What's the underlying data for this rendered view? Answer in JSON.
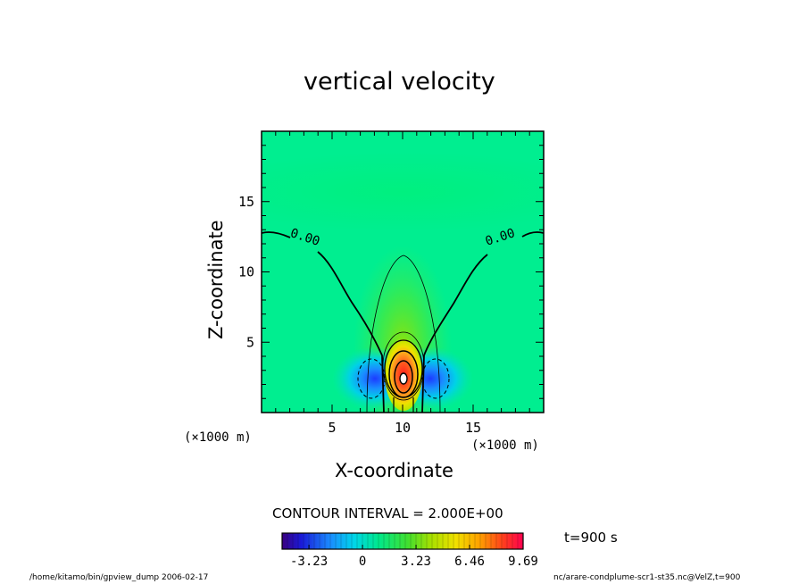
{
  "chart_data": {
    "type": "heatmap",
    "title": "vertical velocity",
    "xlabel": "X-coordinate",
    "ylabel": "Z-coordinate",
    "x_units_label": "(×1000 m)",
    "y_units_label": "(×1000 m)",
    "xlim": [
      0,
      20
    ],
    "ylim": [
      0,
      20
    ],
    "x_ticks": [
      5,
      10,
      15
    ],
    "y_ticks": [
      5,
      10,
      15
    ],
    "x_tick_labels": [
      "5",
      "10",
      "15"
    ],
    "y_tick_labels": [
      "5",
      "10",
      "15"
    ],
    "contour_interval_text": "CONTOUR INTERVAL = 2.000E+00",
    "contour_labels": [
      {
        "text": "0.00",
        "x": 3.0,
        "y": 12.2
      },
      {
        "text": "0.00",
        "x": 17.0,
        "y": 12.2
      }
    ],
    "features": [
      {
        "kind": "updraft_core",
        "x": 10,
        "z": 2.4,
        "max_value": 9.69
      },
      {
        "kind": "downdraft",
        "x": 7.8,
        "z": 2.4,
        "min_value": -3.23
      },
      {
        "kind": "downdraft",
        "x": 12.2,
        "z": 2.4,
        "min_value": -3.23
      }
    ],
    "colorbar": {
      "vmin": -4.85,
      "vmax": 9.69,
      "tick_values": [
        -3.23,
        0,
        3.23,
        6.46,
        9.69
      ],
      "tick_labels": [
        "-3.23",
        "0",
        "3.23",
        "6.46",
        "9.69"
      ]
    }
  },
  "annotations": {
    "time": "t=900 s",
    "footer_left": "/home/kitamo/bin/gpview_dump  2006-02-17",
    "footer_right": "nc/arare-condplume-scr1-st35.nc@VelZ,t=900"
  },
  "colors": {
    "background_field": "#00ee90",
    "contour": "#000000"
  }
}
